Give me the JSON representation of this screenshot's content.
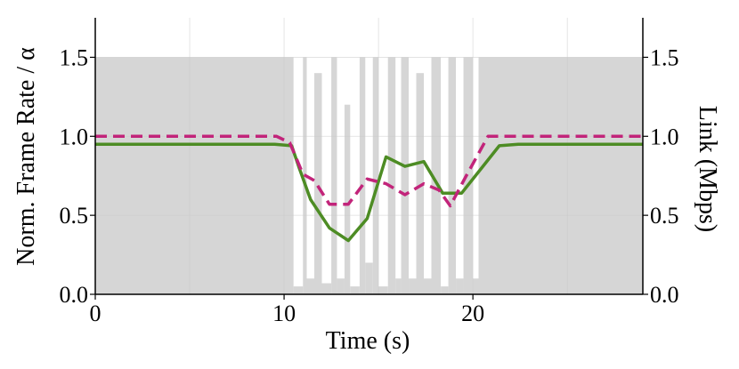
{
  "chart_data": {
    "type": "line",
    "title": "",
    "xlabel": "Time (s)",
    "ylabel_left": "Norm. Frame Rate / α",
    "ylabel_right": "Link (Mbps)",
    "xlim": [
      0,
      29
    ],
    "ylim_left": [
      0,
      1.75
    ],
    "ylim_right": [
      0,
      1.75
    ],
    "x_ticks": [
      0,
      10,
      20
    ],
    "x_tick_labels": [
      "0",
      "10",
      "20"
    ],
    "y_ticks_left": [
      0.0,
      0.5,
      1.0,
      1.5
    ],
    "y_tick_labels_left": [
      "0.0",
      "0.5",
      "1.0",
      "1.5"
    ],
    "y_ticks_right": [
      0.0,
      0.5,
      1.0,
      1.5
    ],
    "y_tick_labels_right": [
      "0.0",
      "0.5",
      "1.0",
      "1.5"
    ],
    "grid": true,
    "link_bandwidth": {
      "axis": "right",
      "color": "#d6d6d6",
      "segments": [
        {
          "x0": 0,
          "x1": 10.0,
          "value": 1.5
        },
        {
          "x0": 10.0,
          "x1": 10.5,
          "value": 1.5
        },
        {
          "x0": 10.5,
          "x1": 11.0,
          "value": 0.05
        },
        {
          "x0": 11.0,
          "x1": 11.2,
          "value": 1.5
        },
        {
          "x0": 11.2,
          "x1": 11.6,
          "value": 0.1
        },
        {
          "x0": 11.6,
          "x1": 12.0,
          "value": 1.4
        },
        {
          "x0": 12.0,
          "x1": 12.5,
          "value": 0.07
        },
        {
          "x0": 12.5,
          "x1": 12.8,
          "value": 1.5
        },
        {
          "x0": 12.8,
          "x1": 13.2,
          "value": 0.1
        },
        {
          "x0": 13.2,
          "x1": 13.5,
          "value": 1.2
        },
        {
          "x0": 13.5,
          "x1": 14.0,
          "value": 0.05
        },
        {
          "x0": 14.0,
          "x1": 14.3,
          "value": 1.5
        },
        {
          "x0": 14.3,
          "x1": 14.7,
          "value": 0.2
        },
        {
          "x0": 14.7,
          "x1": 15.0,
          "value": 1.5
        },
        {
          "x0": 15.0,
          "x1": 15.5,
          "value": 0.05
        },
        {
          "x0": 15.5,
          "x1": 15.9,
          "value": 1.5
        },
        {
          "x0": 15.9,
          "x1": 16.2,
          "value": 0.1
        },
        {
          "x0": 16.2,
          "x1": 16.6,
          "value": 1.5
        },
        {
          "x0": 16.6,
          "x1": 17.0,
          "value": 0.1
        },
        {
          "x0": 17.0,
          "x1": 17.4,
          "value": 1.4
        },
        {
          "x0": 17.4,
          "x1": 17.8,
          "value": 0.1
        },
        {
          "x0": 17.8,
          "x1": 18.3,
          "value": 1.5
        },
        {
          "x0": 18.3,
          "x1": 18.7,
          "value": 0.05
        },
        {
          "x0": 18.7,
          "x1": 19.1,
          "value": 1.5
        },
        {
          "x0": 19.1,
          "x1": 19.5,
          "value": 0.1
        },
        {
          "x0": 19.5,
          "x1": 20.0,
          "value": 1.5
        },
        {
          "x0": 20.0,
          "x1": 20.3,
          "value": 0.1
        },
        {
          "x0": 20.3,
          "x1": 29,
          "value": 1.5
        }
      ]
    },
    "series": [
      {
        "axis": "left",
        "color": "#4d8c24",
        "style": "solid",
        "x": [
          0,
          9.5,
          10.4,
          10.8,
          11.4,
          12.4,
          13.4,
          14.4,
          15.4,
          16.4,
          17.4,
          18.4,
          19.4,
          20.4,
          21.4,
          22.4,
          29
        ],
        "y": [
          0.95,
          0.95,
          0.94,
          0.8,
          0.6,
          0.42,
          0.34,
          0.48,
          0.87,
          0.81,
          0.84,
          0.64,
          0.64,
          0.79,
          0.94,
          0.95,
          0.95
        ]
      },
      {
        "axis": "left",
        "color": "#c2247a",
        "style": "dashed",
        "x": [
          0,
          9.6,
          10.3,
          11.0,
          11.6,
          12.4,
          13.4,
          14.4,
          15.4,
          16.4,
          17.4,
          18.2,
          18.8,
          19.6,
          20.8,
          29
        ],
        "y": [
          1.0,
          1.0,
          0.96,
          0.76,
          0.72,
          0.57,
          0.57,
          0.73,
          0.7,
          0.63,
          0.7,
          0.66,
          0.56,
          0.74,
          1.0,
          1.0
        ]
      }
    ]
  }
}
